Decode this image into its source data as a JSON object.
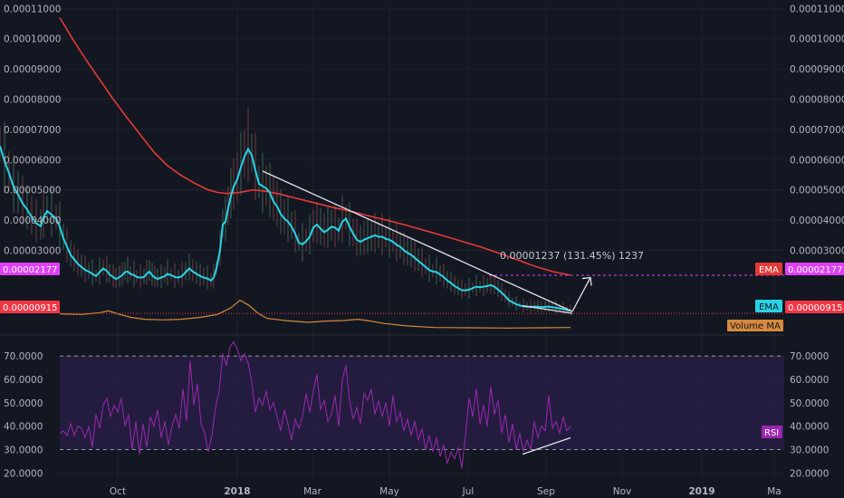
{
  "chart_data": {
    "type": "line",
    "x_labels": [
      "Oct",
      "2018",
      "Mar",
      "May",
      "Jul",
      "Sep",
      "Nov",
      "2019",
      "Ma"
    ],
    "price_ticks": [
      "0.00011000",
      "0.00010000",
      "0.00009000",
      "0.00008000",
      "0.00007000",
      "0.00006000",
      "0.00005000",
      "0.00004000",
      "0.00003000"
    ],
    "price_ylim": [
      2e-06,
      0.000111
    ],
    "rsi_ticks": [
      "70.0000",
      "60.0000",
      "50.0000",
      "40.0000",
      "30.0000",
      "20.0000"
    ],
    "rsi_ylim": [
      17,
      79
    ],
    "rsi_band": [
      30,
      70
    ],
    "ema_long_label": "EMA",
    "ema_long_value": "0.00002177",
    "ema_short_label": "EMA",
    "current_price": "0.00000915",
    "volume_ma_label": "Volume MA",
    "rsi_label": "RSI",
    "measure_annotation": "0.00001237 (131.45%) 1237",
    "colors": {
      "background": "#131722",
      "grid": "#1e222d",
      "ema_long": "#e53935",
      "ema_short": "#26d4e6",
      "volume_ma": "#d6893b",
      "rsi": "#9c27b0",
      "rsi_band_fill": "#2a1f4a",
      "price_tag": "#f23645",
      "ema_long_tag_left": "#e040fb",
      "drawing": "#e0e3eb"
    },
    "ema_short_series": [
      [
        0,
        6.45e-05
      ],
      [
        5,
        5.95e-05
      ],
      [
        10,
        5.55e-05
      ],
      [
        15,
        5.1e-05
      ],
      [
        20,
        4.85e-05
      ],
      [
        25,
        4.55e-05
      ],
      [
        30,
        4.35e-05
      ],
      [
        35,
        4.1e-05
      ],
      [
        40,
        3.9e-05
      ],
      [
        45,
        3.8e-05
      ],
      [
        48,
        4.1e-05
      ],
      [
        52,
        4.3e-05
      ],
      [
        57,
        4.18e-05
      ],
      [
        62,
        4.05e-05
      ],
      [
        66,
        3.78e-05
      ],
      [
        70,
        3.4e-05
      ],
      [
        74,
        3.12e-05
      ],
      [
        78,
        2.85e-05
      ],
      [
        82,
        2.7e-05
      ],
      [
        86,
        2.55e-05
      ],
      [
        90,
        2.45e-05
      ],
      [
        94,
        2.35e-05
      ],
      [
        98,
        2.3e-05
      ],
      [
        102,
        2.22e-05
      ],
      [
        106,
        2.15e-05
      ],
      [
        110,
        2.28e-05
      ],
      [
        114,
        2.4e-05
      ],
      [
        118,
        2.32e-05
      ],
      [
        121,
        2.2e-05
      ],
      [
        125,
        2.12e-05
      ],
      [
        128,
        2.05e-05
      ],
      [
        132,
        2.12e-05
      ],
      [
        135,
        2.18e-05
      ],
      [
        138,
        2.28e-05
      ],
      [
        141,
        2.3e-05
      ],
      [
        144,
        2.22e-05
      ],
      [
        148,
        2.18e-05
      ],
      [
        151,
        2.12e-05
      ],
      [
        155,
        2.1e-05
      ],
      [
        159,
        2.12e-05
      ],
      [
        162,
        2.22e-05
      ],
      [
        165,
        2.3e-05
      ],
      [
        168,
        2.18e-05
      ],
      [
        171,
        2.1e-05
      ],
      [
        174,
        2.06e-05
      ],
      [
        178,
        2.1e-05
      ],
      [
        182,
        2.15e-05
      ],
      [
        185,
        2.22e-05
      ],
      [
        189,
        2.18e-05
      ],
      [
        193,
        2.12e-05
      ],
      [
        197,
        2.1e-05
      ],
      [
        201,
        2.15e-05
      ],
      [
        205,
        2.28e-05
      ],
      [
        209,
        2.4e-05
      ],
      [
        213,
        2.3e-05
      ],
      [
        217,
        2.22e-05
      ],
      [
        221,
        2.15e-05
      ],
      [
        225,
        2.1e-05
      ],
      [
        229,
        2.07e-05
      ],
      [
        233,
        2e-05
      ],
      [
        236,
        2.1e-05
      ],
      [
        239,
        2.4e-05
      ],
      [
        243,
        3e-05
      ],
      [
        246,
        3.85e-05
      ],
      [
        249,
        3.95e-05
      ],
      [
        252,
        4.4e-05
      ],
      [
        255,
        4.8e-05
      ],
      [
        258,
        5.1e-05
      ],
      [
        262,
        5.35e-05
      ],
      [
        266,
        5.75e-05
      ],
      [
        270,
        6.1e-05
      ],
      [
        274,
        6.35e-05
      ],
      [
        278,
        6.15e-05
      ],
      [
        282,
        5.65e-05
      ],
      [
        286,
        5.2e-05
      ],
      [
        290,
        5.12e-05
      ],
      [
        294,
        5.05e-05
      ],
      [
        298,
        4.9e-05
      ],
      [
        302,
        4.62e-05
      ],
      [
        306,
        4.45e-05
      ],
      [
        310,
        4.2e-05
      ],
      [
        314,
        4.05e-05
      ],
      [
        318,
        3.95e-05
      ],
      [
        322,
        3.78e-05
      ],
      [
        326,
        3.55e-05
      ],
      [
        330,
        3.25e-05
      ],
      [
        334,
        3.2e-05
      ],
      [
        338,
        3.3e-05
      ],
      [
        342,
        3.45e-05
      ],
      [
        346,
        3.75e-05
      ],
      [
        350,
        3.85e-05
      ],
      [
        354,
        3.72e-05
      ],
      [
        358,
        3.6e-05
      ],
      [
        362,
        3.68e-05
      ],
      [
        366,
        3.78e-05
      ],
      [
        370,
        3.75e-05
      ],
      [
        374,
        3.65e-05
      ],
      [
        378,
        3.95e-05
      ],
      [
        382,
        4.05e-05
      ],
      [
        386,
        3.78e-05
      ],
      [
        390,
        3.55e-05
      ],
      [
        394,
        3.35e-05
      ],
      [
        398,
        3.28e-05
      ],
      [
        402,
        3.35e-05
      ],
      [
        406,
        3.4e-05
      ],
      [
        410,
        3.45e-05
      ],
      [
        414,
        3.5e-05
      ],
      [
        418,
        3.45e-05
      ],
      [
        422,
        3.45e-05
      ],
      [
        426,
        3.38e-05
      ],
      [
        430,
        3.35e-05
      ],
      [
        434,
        3.28e-05
      ],
      [
        438,
        3.18e-05
      ],
      [
        442,
        3.12e-05
      ],
      [
        446,
        3e-05
      ],
      [
        450,
        2.92e-05
      ],
      [
        454,
        2.85e-05
      ],
      [
        458,
        2.75e-05
      ],
      [
        462,
        2.65e-05
      ],
      [
        466,
        2.55e-05
      ],
      [
        470,
        2.45e-05
      ],
      [
        474,
        2.35e-05
      ],
      [
        478,
        2.3e-05
      ],
      [
        482,
        2.28e-05
      ],
      [
        486,
        2.2e-05
      ],
      [
        490,
        2.12e-05
      ],
      [
        494,
        2e-05
      ],
      [
        498,
        1.92e-05
      ],
      [
        502,
        1.82e-05
      ],
      [
        506,
        1.75e-05
      ],
      [
        510,
        1.68e-05
      ],
      [
        514,
        1.68e-05
      ],
      [
        518,
        1.7e-05
      ],
      [
        522,
        1.75e-05
      ],
      [
        526,
        1.8e-05
      ],
      [
        530,
        1.78e-05
      ],
      [
        534,
        1.8e-05
      ],
      [
        538,
        1.82e-05
      ],
      [
        542,
        1.85e-05
      ],
      [
        546,
        1.8e-05
      ],
      [
        550,
        1.7e-05
      ],
      [
        554,
        1.6e-05
      ],
      [
        558,
        1.48e-05
      ],
      [
        562,
        1.35e-05
      ],
      [
        566,
        1.28e-05
      ],
      [
        570,
        1.22e-05
      ],
      [
        574,
        1.18e-05
      ],
      [
        578,
        1.15e-05
      ],
      [
        582,
        1.14e-05
      ],
      [
        586,
        1.13e-05
      ],
      [
        590,
        1.14e-05
      ],
      [
        594,
        1.14e-05
      ],
      [
        598,
        1.12e-05
      ],
      [
        602,
        1.13e-05
      ],
      [
        606,
        1.14e-05
      ],
      [
        610,
        1.12e-05
      ],
      [
        614,
        1.1e-05
      ],
      [
        618,
        1.08e-05
      ],
      [
        622,
        1.06e-05
      ],
      [
        626,
        1.03e-05
      ],
      [
        630,
        1e-05
      ]
    ],
    "ema_long_series": [
      [
        66,
        0.000107
      ],
      [
        80,
        0.0001
      ],
      [
        95,
        9.3e-05
      ],
      [
        110,
        8.65e-05
      ],
      [
        125,
        8e-05
      ],
      [
        140,
        7.4e-05
      ],
      [
        155,
        6.82e-05
      ],
      [
        170,
        6.25e-05
      ],
      [
        185,
        5.8e-05
      ],
      [
        200,
        5.48e-05
      ],
      [
        215,
        5.22e-05
      ],
      [
        230,
        5e-05
      ],
      [
        240,
        4.92e-05
      ],
      [
        250,
        4.88e-05
      ],
      [
        265,
        4.92e-05
      ],
      [
        280,
        5e-05
      ],
      [
        295,
        4.95e-05
      ],
      [
        310,
        4.85e-05
      ],
      [
        330,
        4.7e-05
      ],
      [
        350,
        4.55e-05
      ],
      [
        370,
        4.4e-05
      ],
      [
        390,
        4.28e-05
      ],
      [
        410,
        4.12e-05
      ],
      [
        430,
        3.98e-05
      ],
      [
        450,
        3.82e-05
      ],
      [
        470,
        3.65e-05
      ],
      [
        490,
        3.48e-05
      ],
      [
        510,
        3.3e-05
      ],
      [
        530,
        3.12e-05
      ],
      [
        550,
        2.92e-05
      ],
      [
        570,
        2.7e-05
      ],
      [
        590,
        2.48e-05
      ],
      [
        610,
        2.3e-05
      ],
      [
        630,
        2.18e-05
      ]
    ],
    "rsi_series": [
      [
        66,
        37
      ],
      [
        70,
        38
      ],
      [
        74,
        36
      ],
      [
        78,
        41
      ],
      [
        82,
        36
      ],
      [
        86,
        40
      ],
      [
        90,
        39
      ],
      [
        94,
        35
      ],
      [
        98,
        40
      ],
      [
        102,
        31
      ],
      [
        106,
        45
      ],
      [
        110,
        39
      ],
      [
        114,
        49
      ],
      [
        118,
        52
      ],
      [
        122,
        44
      ],
      [
        126,
        49
      ],
      [
        130,
        46
      ],
      [
        134,
        52
      ],
      [
        138,
        40
      ],
      [
        142,
        45
      ],
      [
        146,
        30
      ],
      [
        150,
        42
      ],
      [
        154,
        28
      ],
      [
        158,
        41
      ],
      [
        162,
        31
      ],
      [
        166,
        44
      ],
      [
        170,
        40
      ],
      [
        174,
        47
      ],
      [
        178,
        35
      ],
      [
        182,
        42
      ],
      [
        186,
        32
      ],
      [
        190,
        40
      ],
      [
        194,
        45
      ],
      [
        198,
        39
      ],
      [
        202,
        56
      ],
      [
        206,
        42
      ],
      [
        210,
        68
      ],
      [
        214,
        49
      ],
      [
        218,
        58
      ],
      [
        222,
        41
      ],
      [
        226,
        37
      ],
      [
        230,
        29
      ],
      [
        234,
        36
      ],
      [
        238,
        48
      ],
      [
        242,
        55
      ],
      [
        246,
        71
      ],
      [
        250,
        66
      ],
      [
        254,
        74
      ],
      [
        258,
        76
      ],
      [
        262,
        73
      ],
      [
        266,
        68
      ],
      [
        270,
        71
      ],
      [
        274,
        67
      ],
      [
        278,
        59
      ],
      [
        282,
        46
      ],
      [
        286,
        52
      ],
      [
        290,
        49
      ],
      [
        294,
        55
      ],
      [
        298,
        47
      ],
      [
        302,
        50
      ],
      [
        306,
        44
      ],
      [
        310,
        38
      ],
      [
        314,
        47
      ],
      [
        318,
        41
      ],
      [
        322,
        34
      ],
      [
        326,
        43
      ],
      [
        330,
        39
      ],
      [
        334,
        44
      ],
      [
        338,
        54
      ],
      [
        342,
        46
      ],
      [
        346,
        55
      ],
      [
        350,
        62
      ],
      [
        354,
        47
      ],
      [
        358,
        51
      ],
      [
        362,
        42
      ],
      [
        366,
        45
      ],
      [
        370,
        53
      ],
      [
        374,
        40
      ],
      [
        378,
        60
      ],
      [
        382,
        66
      ],
      [
        386,
        51
      ],
      [
        390,
        43
      ],
      [
        394,
        48
      ],
      [
        398,
        41
      ],
      [
        402,
        54
      ],
      [
        406,
        51
      ],
      [
        410,
        56
      ],
      [
        414,
        45
      ],
      [
        418,
        51
      ],
      [
        422,
        44
      ],
      [
        426,
        50
      ],
      [
        430,
        40
      ],
      [
        434,
        53
      ],
      [
        438,
        42
      ],
      [
        442,
        46
      ],
      [
        446,
        38
      ],
      [
        450,
        43
      ],
      [
        454,
        36
      ],
      [
        458,
        42
      ],
      [
        462,
        34
      ],
      [
        466,
        39
      ],
      [
        470,
        30
      ],
      [
        474,
        36
      ],
      [
        478,
        29
      ],
      [
        482,
        35
      ],
      [
        486,
        27
      ],
      [
        490,
        32
      ],
      [
        494,
        24
      ],
      [
        498,
        29
      ],
      [
        502,
        26
      ],
      [
        506,
        31
      ],
      [
        510,
        22
      ],
      [
        514,
        36
      ],
      [
        518,
        52
      ],
      [
        522,
        44
      ],
      [
        526,
        56
      ],
      [
        530,
        41
      ],
      [
        534,
        49
      ],
      [
        538,
        40
      ],
      [
        542,
        57
      ],
      [
        546,
        45
      ],
      [
        550,
        51
      ],
      [
        554,
        37
      ],
      [
        558,
        45
      ],
      [
        562,
        33
      ],
      [
        566,
        41
      ],
      [
        570,
        30
      ],
      [
        574,
        37
      ],
      [
        578,
        29
      ],
      [
        582,
        34
      ],
      [
        586,
        30
      ],
      [
        590,
        42
      ],
      [
        594,
        35
      ],
      [
        598,
        40
      ],
      [
        602,
        38
      ],
      [
        606,
        53
      ],
      [
        610,
        39
      ],
      [
        614,
        42
      ],
      [
        618,
        37
      ],
      [
        622,
        44
      ],
      [
        626,
        38
      ],
      [
        630,
        40
      ]
    ],
    "volume_ma_series": [
      [
        66,
        9e-06
      ],
      [
        90,
        8.8e-06
      ],
      [
        110,
        9.4e-06
      ],
      [
        120,
        1e-05
      ],
      [
        130,
        9e-06
      ],
      [
        145,
        7.8e-06
      ],
      [
        160,
        7.2e-06
      ],
      [
        180,
        7e-06
      ],
      [
        200,
        7.2e-06
      ],
      [
        220,
        7.8e-06
      ],
      [
        240,
        8.8e-06
      ],
      [
        255,
        1.1e-05
      ],
      [
        265,
        1.35e-05
      ],
      [
        275,
        1.18e-05
      ],
      [
        285,
        9.2e-06
      ],
      [
        295,
        7.5e-06
      ],
      [
        315,
        6.8e-06
      ],
      [
        340,
        6.2e-06
      ],
      [
        360,
        6.6e-06
      ],
      [
        380,
        6.8e-06
      ],
      [
        395,
        7.2e-06
      ],
      [
        405,
        6.8e-06
      ],
      [
        425,
        5.8e-06
      ],
      [
        450,
        5e-06
      ],
      [
        480,
        4.5e-06
      ],
      [
        520,
        4.4e-06
      ],
      [
        560,
        4.3e-06
      ],
      [
        600,
        4.4e-06
      ],
      [
        630,
        4.5e-06
      ]
    ],
    "drawing_lines": {
      "upper_trend": [
        [
          290,
          5.62e-05
        ],
        [
          632,
          9.8e-06
        ]
      ],
      "lower_trend": [
        [
          577,
          1.17e-05
        ],
        [
          632,
          9.2e-06
        ]
      ],
      "projection": [
        [
          632,
          9.8e-06
        ],
        [
          652,
          2.1e-05
        ]
      ],
      "rsi_trend": [
        [
          577,
          28
        ],
        [
          630,
          35
        ]
      ]
    }
  }
}
